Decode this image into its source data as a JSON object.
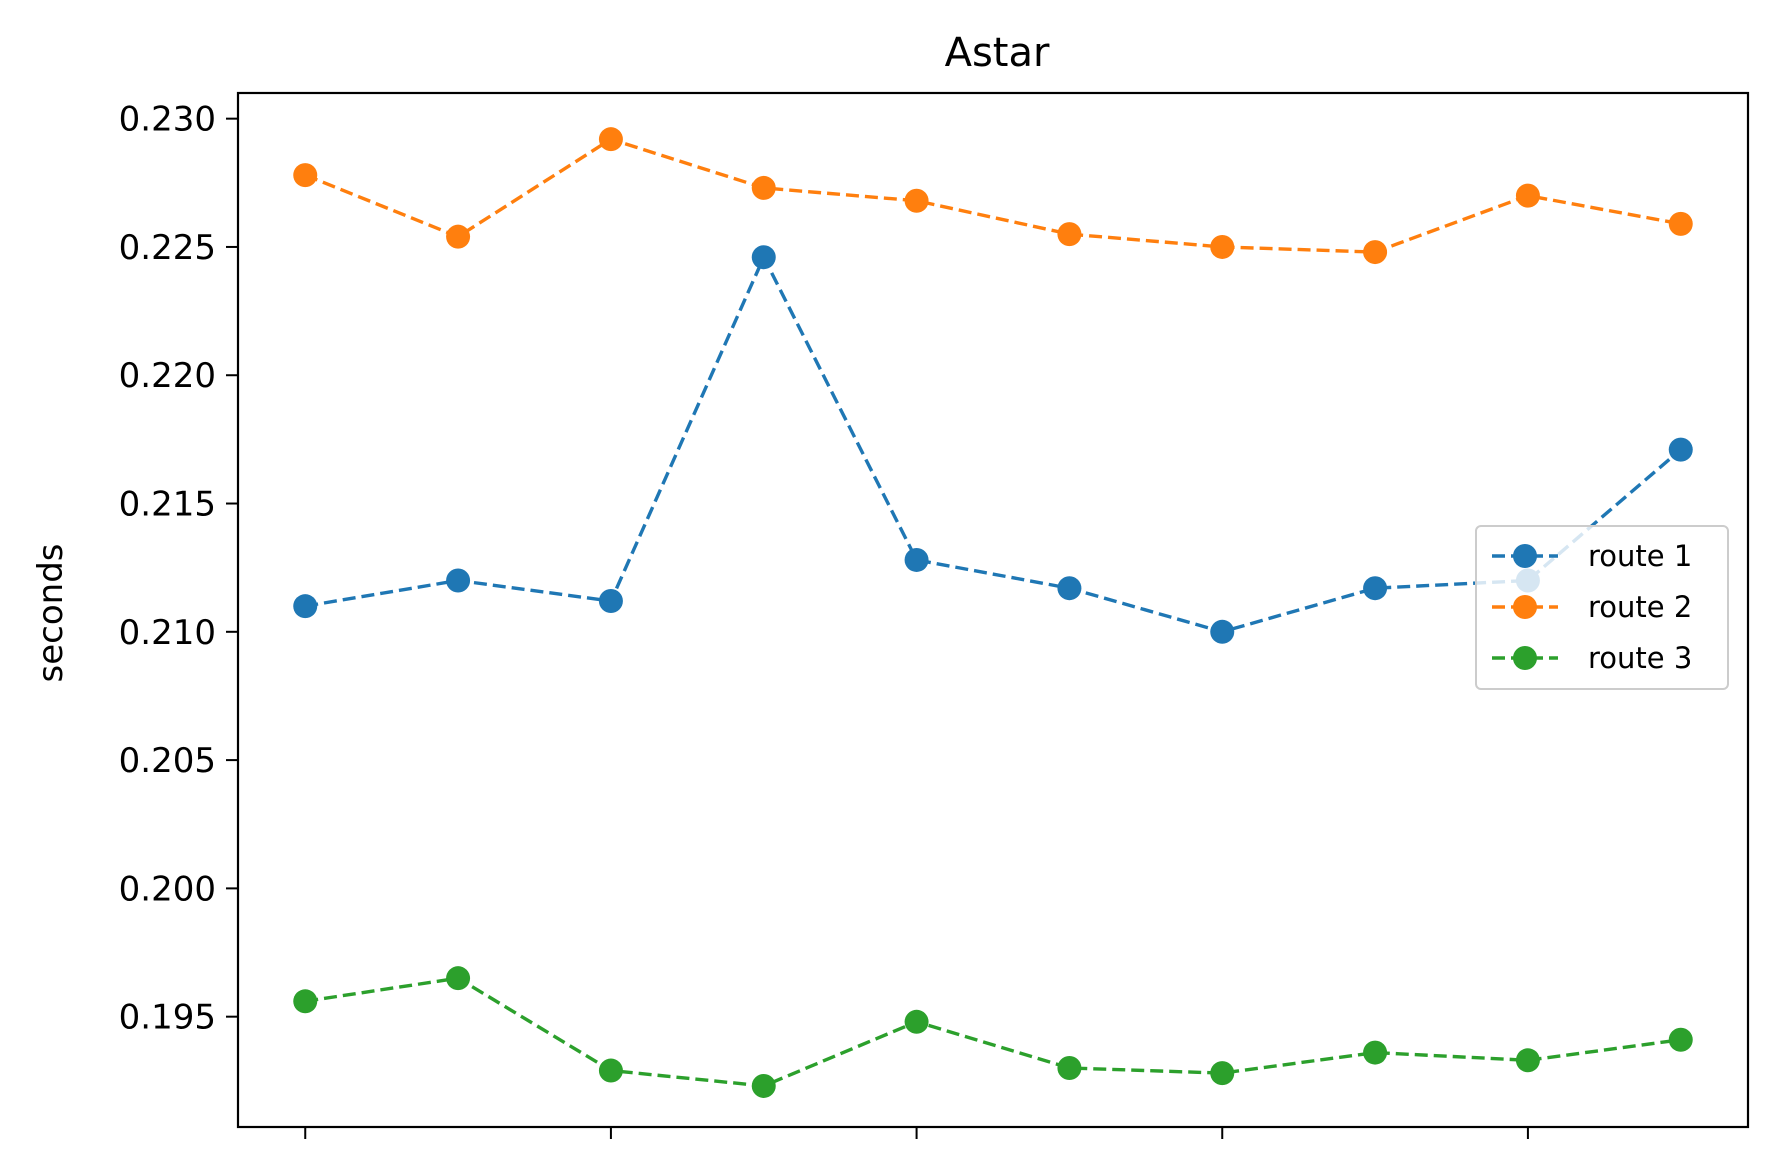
{
  "chart_data": {
    "type": "line",
    "title": "Astar",
    "xlabel": "",
    "ylabel": "seconds",
    "x": [
      1,
      2,
      3,
      4,
      5,
      6,
      7,
      8,
      9,
      10
    ],
    "xlim": [
      0.56,
      10.44
    ],
    "ylim": [
      0.1907,
      0.231
    ],
    "x_ticks": [
      1,
      3,
      5,
      7,
      9
    ],
    "x_tick_labels": [
      "",
      "",
      "",
      "",
      ""
    ],
    "y_ticks": [
      0.195,
      0.2,
      0.205,
      0.21,
      0.215,
      0.22,
      0.225,
      0.23
    ],
    "y_tick_labels": [
      "0.195",
      "0.200",
      "0.205",
      "0.210",
      "0.215",
      "0.220",
      "0.225",
      "0.230"
    ],
    "grid": false,
    "legend_position": "center-right",
    "series": [
      {
        "name": "route 1",
        "color": "#1f77b4",
        "line_style": "dashed",
        "marker": "circle",
        "values": [
          0.211,
          0.212,
          0.2112,
          0.2246,
          0.2128,
          0.2117,
          0.21,
          0.2117,
          0.212,
          0.2171
        ]
      },
      {
        "name": "route 2",
        "color": "#ff7f0e",
        "line_style": "dashed",
        "marker": "circle",
        "values": [
          0.2278,
          0.2254,
          0.2292,
          0.2273,
          0.2268,
          0.2255,
          0.225,
          0.2248,
          0.227,
          0.2259
        ]
      },
      {
        "name": "route 3",
        "color": "#2ca02c",
        "line_style": "dashed",
        "marker": "circle",
        "values": [
          0.1956,
          0.1965,
          0.1929,
          0.1923,
          0.1948,
          0.193,
          0.1928,
          0.1936,
          0.1933,
          0.1941
        ]
      }
    ]
  }
}
